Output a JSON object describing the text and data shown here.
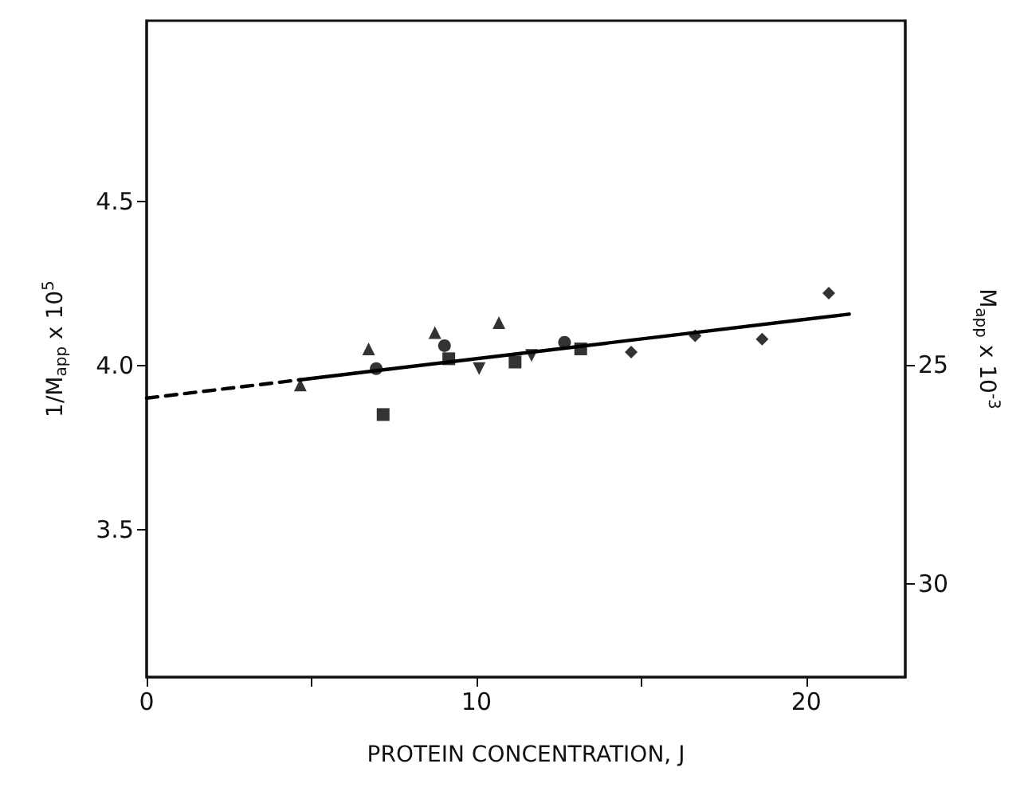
{
  "chart_data": {
    "type": "scatter",
    "xlabel": "PROTEIN CONCENTRATION, J",
    "ylabel": "1/M$_{app}$ x 10$^{5}$",
    "y2label": "M$_{app}$ x 10$^{-3}$",
    "xlim": [
      0,
      23
    ],
    "xticks": [
      0,
      {
        "value": 5,
        "label": null
      },
      10,
      {
        "value": 15,
        "label": null
      },
      20
    ],
    "ylim": [
      3.05,
      5.05
    ],
    "yticks": [
      3.5,
      {
        "value": 4,
        "label": "4.0"
      },
      4.5
    ],
    "y2lim": [
      32.13,
      17.13
    ],
    "y2ticks": [
      25,
      30
    ],
    "grid": false,
    "series": [
      {
        "type": "line",
        "color": "#000000",
        "marker": "none",
        "line_style": "dashed",
        "x": [
          0,
          4.66
        ],
        "values": [
          3.9,
          3.956
        ]
      },
      {
        "type": "line",
        "color": "#000000",
        "marker": "none",
        "line_style": "solid",
        "x": [
          4.66,
          21.3
        ],
        "values": [
          3.956,
          4.156
        ]
      },
      {
        "color": "#000000",
        "marker": "triangle",
        "x": [
          4.66,
          6.73,
          8.74,
          10.68
        ],
        "values": [
          3.94,
          4.05,
          4.1,
          4.13
        ]
      },
      {
        "color": "#000000",
        "marker": "circle",
        "x": [
          6.96,
          9.03,
          12.67
        ],
        "values": [
          3.99,
          4.06,
          4.07
        ]
      },
      {
        "color": "#000000",
        "marker": "square",
        "x": [
          7.17,
          9.16,
          11.17,
          13.16
        ],
        "values": [
          3.85,
          4.02,
          4.01,
          4.05
        ]
      },
      {
        "color": "#000000",
        "marker": "triangle-down",
        "x": [
          10.08,
          11.67
        ],
        "values": [
          3.99,
          4.03
        ]
      },
      {
        "color": "#000000",
        "marker": "diamond",
        "x": [
          14.69,
          16.63,
          18.66,
          20.68
        ],
        "values": [
          4.04,
          4.09,
          4.08,
          4.22
        ]
      }
    ]
  }
}
